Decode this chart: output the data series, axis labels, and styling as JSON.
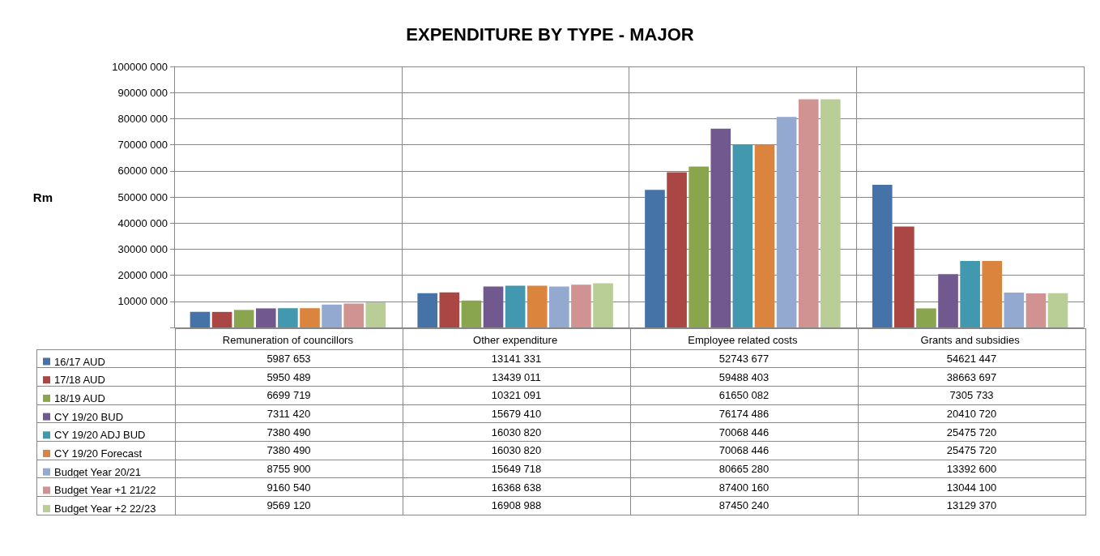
{
  "chart_data": {
    "type": "bar",
    "title": "EXPENDITURE BY TYPE - MAJOR",
    "ylabel": "Rm",
    "categories": [
      "Remuneration of councillors",
      "Other expenditure",
      "Employee related costs",
      "Grants and subsidies"
    ],
    "ylim": [
      0,
      100000000
    ],
    "yticks": [
      {
        "value": 0,
        "label": null
      },
      {
        "value": 10000000,
        "label": "10000 000"
      },
      {
        "value": 20000000,
        "label": "20000 000"
      },
      {
        "value": 30000000,
        "label": "30000 000"
      },
      {
        "value": 40000000,
        "label": "40000 000"
      },
      {
        "value": 50000000,
        "label": "50000 000"
      },
      {
        "value": 60000000,
        "label": "60000 000"
      },
      {
        "value": 70000000,
        "label": "70000 000"
      },
      {
        "value": 80000000,
        "label": "80000 000"
      },
      {
        "value": 90000000,
        "label": "90000 000"
      },
      {
        "value": 100000000,
        "label": "100000 000"
      }
    ],
    "grid": true,
    "legend": "bottom left",
    "series": [
      {
        "name": "16/17 AUD",
        "color": "#4572a7",
        "values": [
          5987653,
          13141331,
          52743677,
          54621447
        ],
        "value_labels": [
          "5987 653",
          "13141 331",
          "52743 677",
          "54621 447"
        ]
      },
      {
        "name": "17/18 AUD",
        "color": "#aa4643",
        "values": [
          5950489,
          13439011,
          59488403,
          38663697
        ],
        "value_labels": [
          "5950 489",
          "13439 011",
          "59488 403",
          "38663 697"
        ]
      },
      {
        "name": "18/19 AUD",
        "color": "#89a54e",
        "values": [
          6699719,
          10321091,
          61650082,
          7305733
        ],
        "value_labels": [
          "6699 719",
          "10321 091",
          "61650 082",
          "7305 733"
        ]
      },
      {
        "name": "CY 19/20 BUD",
        "color": "#71588f",
        "values": [
          7311420,
          15679410,
          76174486,
          20410720
        ],
        "value_labels": [
          "7311 420",
          "15679 410",
          "76174 486",
          "20410 720"
        ]
      },
      {
        "name": "CY 19/20 ADJ BUD",
        "color": "#4198af",
        "values": [
          7380490,
          16030820,
          70068446,
          25475720
        ],
        "value_labels": [
          "7380 490",
          "16030 820",
          "70068 446",
          "25475 720"
        ]
      },
      {
        "name": "CY 19/20 Forecast",
        "color": "#db843d",
        "values": [
          7380490,
          16030820,
          70068446,
          25475720
        ],
        "value_labels": [
          "7380 490",
          "16030 820",
          "70068 446",
          "25475 720"
        ]
      },
      {
        "name": "Budget Year 20/21",
        "color": "#93a9cf",
        "values": [
          8755900,
          15649718,
          80665280,
          13392600
        ],
        "value_labels": [
          "8755 900",
          "15649 718",
          "80665 280",
          "13392 600"
        ]
      },
      {
        "name": "Budget Year +1 21/22",
        "color": "#d19392",
        "values": [
          9160540,
          16368638,
          87400160,
          13044100
        ],
        "value_labels": [
          "9160 540",
          "16368 638",
          "87400 160",
          "13044 100"
        ]
      },
      {
        "name": "Budget Year +2 22/23",
        "color": "#b9cd96",
        "values": [
          9569120,
          16908988,
          87450240,
          13129370
        ],
        "value_labels": [
          "9569 120",
          "16908 988",
          "87450 240",
          "13129 370"
        ]
      }
    ]
  }
}
